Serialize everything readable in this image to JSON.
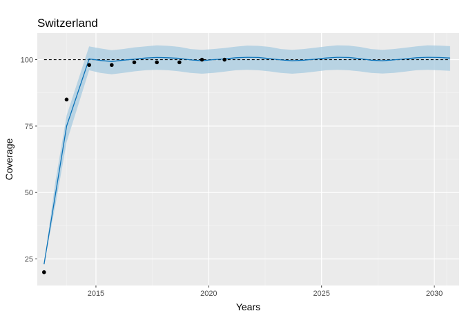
{
  "chart_data": {
    "type": "line",
    "title": "Switzerland",
    "xlabel": "Years",
    "ylabel": "Coverage",
    "xlim": [
      2012.4,
      2031.1
    ],
    "ylim": [
      15,
      110
    ],
    "xticks": [
      2015,
      2020,
      2025,
      2030
    ],
    "xtick_labels": [
      "2015",
      "2020",
      "2025",
      "2030"
    ],
    "yticks": [
      25,
      50,
      75,
      100
    ],
    "ytick_labels": [
      "25",
      "50",
      "75",
      "100"
    ],
    "reference_line": {
      "y": 100,
      "x_range": [
        2012.7,
        2030.7
      ],
      "style": "dashed"
    },
    "observed": {
      "x": [
        2012.7,
        2013.7,
        2014.7,
        2015.7,
        2016.7,
        2017.7,
        2018.7,
        2019.7,
        2020.7
      ],
      "y": [
        20,
        85,
        98,
        98,
        99,
        99,
        99,
        100,
        100
      ]
    },
    "fit": {
      "x": [
        2012.7,
        2013.2,
        2013.7,
        2014.7,
        2015.2,
        2015.7,
        2016.2,
        2016.7,
        2017.2,
        2017.7,
        2018.2,
        2018.7,
        2019.2,
        2019.7,
        2020.2,
        2020.7,
        2021.2,
        2021.7,
        2022.2,
        2022.7,
        2023.2,
        2023.7,
        2024.2,
        2024.7,
        2025.2,
        2025.7,
        2026.2,
        2026.7,
        2027.2,
        2027.7,
        2028.2,
        2028.7,
        2029.2,
        2029.7,
        2030.2,
        2030.7
      ],
      "y": [
        23,
        49,
        75,
        100.3,
        99.7,
        99.3,
        99.8,
        100.2,
        100.6,
        100.8,
        100.7,
        100.5,
        99.9,
        99.6,
        100,
        100.3,
        100.7,
        100.9,
        100.8,
        100.4,
        99.9,
        99.6,
        99.8,
        100.2,
        100.6,
        100.9,
        100.8,
        100.4,
        99.8,
        99.6,
        99.9,
        100.3,
        100.7,
        100.9,
        100.8,
        100.6
      ],
      "lower": [
        23,
        45,
        69,
        96,
        95,
        94.5,
        95,
        95.6,
        96,
        96.2,
        96,
        95.6,
        95,
        94.7,
        95,
        95.5,
        96,
        96.2,
        96,
        95.6,
        95,
        94.7,
        95,
        95.5,
        96,
        96.2,
        96,
        95.6,
        95,
        94.8,
        95,
        95.5,
        96,
        96.2,
        96,
        95.8
      ],
      "upper": [
        23,
        54,
        79,
        105,
        104.2,
        103.6,
        104,
        104.6,
        105,
        105.4,
        105.2,
        104.8,
        104,
        103.7,
        104,
        104.4,
        104.9,
        105.3,
        105.2,
        104.8,
        104,
        103.7,
        104,
        104.5,
        105,
        105.4,
        105.3,
        104.8,
        104,
        103.7,
        104,
        104.5,
        105,
        105.4,
        105.3,
        105.1
      ]
    },
    "colors": {
      "panel": "#ebebeb",
      "grid_major": "#ffffff",
      "grid_minor": "#f5f5f5",
      "ribbon": "#a7cbe0",
      "line": "#0b72b8",
      "points": "#000000",
      "reference": "#000000"
    },
    "grid": true,
    "legend": "none"
  }
}
